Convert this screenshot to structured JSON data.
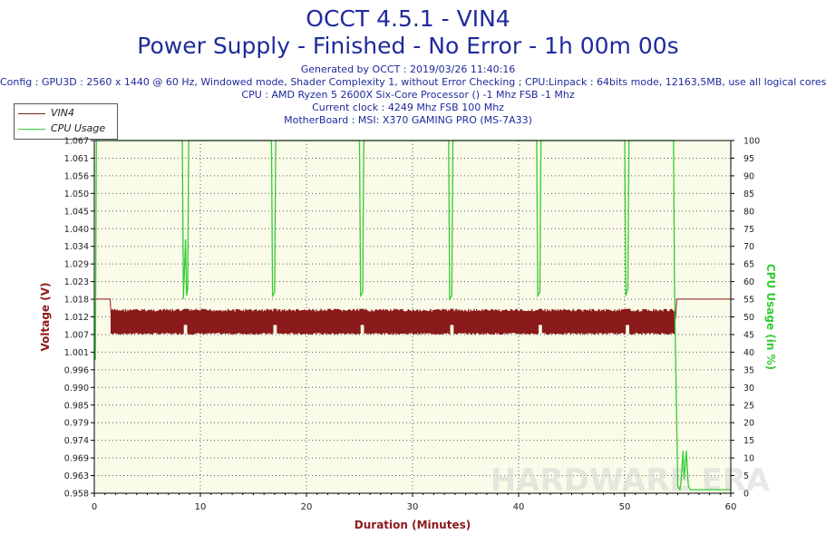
{
  "header": {
    "title": "OCCT 4.5.1 - VIN4",
    "subtitle": "Power Supply - Finished - No Error - 1h 00m 00s",
    "generated": "Generated by OCCT : 2019/03/26 11:40:16",
    "config": "Config : GPU3D : 2560 x 1440 @ 60 Hz, Windowed mode, Shader Complexity 1, without Error Checking ; CPU:Linpack : 64bits mode, 12163,5MB, use all logical cores",
    "cpu": "CPU : AMD Ryzen 5 2600X Six-Core Processor () -1 Mhz FSB -1 Mhz",
    "clock": "Current clock : 4249 Mhz FSB 100 Mhz",
    "motherboard": "MotherBoard : MSI: X370 GAMING PRO (MS-7A33)"
  },
  "watermark": "HARDWARE ERA",
  "colors": {
    "vin4": "#8b1a1a",
    "cpu": "#33cc33",
    "plot_bg": "#fbfbe9",
    "grid": "#5a5a5a"
  },
  "chart_data": {
    "type": "line",
    "xlabel": "Duration (Minutes)",
    "ylabel_left": "Voltage (V)",
    "ylabel_right": "CPU Usage (in %)",
    "xlim": [
      0,
      60
    ],
    "ylim_left": [
      0.958,
      1.067
    ],
    "ylim_right": [
      0,
      100
    ],
    "x_ticks": [
      "0",
      "10",
      "20",
      "30",
      "40",
      "50",
      "60"
    ],
    "y_ticks_left": [
      "0.958",
      "0.963",
      "0.969",
      "0.974",
      "0.979",
      "0.985",
      "0.990",
      "0.996",
      "1.001",
      "1.007",
      "1.012",
      "1.018",
      "1.023",
      "1.029",
      "1.034",
      "1.040",
      "1.045",
      "1.050",
      "1.056",
      "1.061",
      "1.067"
    ],
    "y_ticks_right": [
      "0",
      "5",
      "10",
      "15",
      "20",
      "25",
      "30",
      "35",
      "40",
      "45",
      "50",
      "55",
      "60",
      "65",
      "70",
      "75",
      "80",
      "85",
      "90",
      "95",
      "100"
    ],
    "legend_position": "top-left",
    "grid": true,
    "series": [
      {
        "name": "VIN4",
        "axis": "left",
        "x": [
          0,
          1.5,
          1.6,
          54.8,
          54.9,
          60
        ],
        "y": [
          1.018,
          1.018,
          1.012,
          1.012,
          1.018,
          1.018
        ],
        "band_min": 1.007,
        "band_max": 1.015,
        "band_range": [
          1.6,
          54.8
        ]
      },
      {
        "name": "CPU Usage",
        "axis": "right",
        "x": [
          0,
          0.1,
          0.2,
          8.3,
          8.4,
          8.6,
          8.7,
          8.8,
          8.9,
          9.0,
          16.7,
          16.8,
          17.0,
          17.1,
          25.0,
          25.1,
          25.3,
          25.4,
          33.4,
          33.5,
          33.7,
          33.8,
          41.7,
          41.8,
          42.0,
          42.1,
          50.0,
          50.1,
          50.3,
          50.4,
          54.6,
          54.7,
          55.0,
          55.2,
          55.3,
          55.5,
          55.6,
          55.8,
          56.0,
          56.2,
          60
        ],
        "y": [
          38,
          38,
          100,
          100,
          55,
          72,
          56,
          58,
          100,
          100,
          100,
          56,
          57,
          100,
          100,
          56,
          57,
          100,
          100,
          55,
          56,
          100,
          100,
          56,
          57,
          100,
          100,
          56,
          58,
          100,
          100,
          57,
          2,
          1,
          3,
          12,
          4,
          12,
          2,
          1,
          1
        ]
      }
    ]
  }
}
